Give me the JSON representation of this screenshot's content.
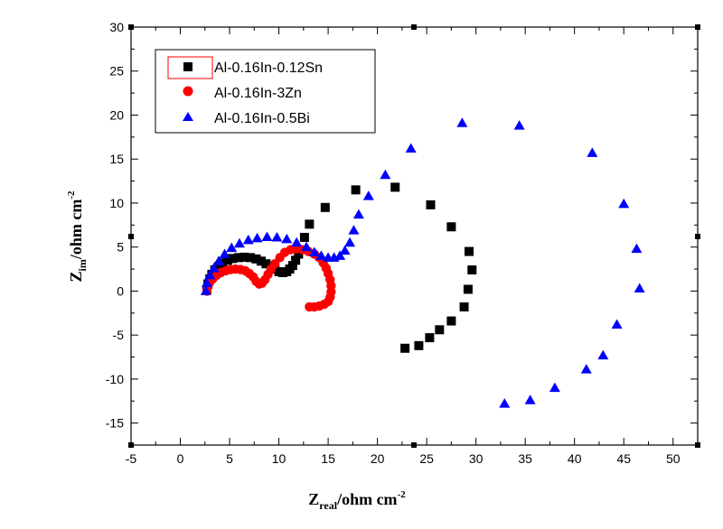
{
  "chart_data": {
    "type": "scatter",
    "xlabel": {
      "main": "Z",
      "sub": "real",
      "rest": "/ohm cm",
      "sup": "-2"
    },
    "ylabel": {
      "main": "Z",
      "sub": "im",
      "rest": "/ohm cm",
      "sup": "-2"
    },
    "xlim": [
      -5,
      52.5
    ],
    "ylim": [
      -17.5,
      30
    ],
    "xticks": [
      "-5",
      "0",
      "5",
      "10",
      "15",
      "20",
      "25",
      "30",
      "35",
      "40",
      "45",
      "50"
    ],
    "yticks": [
      "-15",
      "-10",
      "-5",
      "0",
      "5",
      "10",
      "15",
      "20",
      "25",
      "30"
    ],
    "legend_position": "top-left",
    "series": [
      {
        "name": "Al-0.16In-0.12Sn",
        "marker": "square",
        "color": "#000000",
        "points": [
          [
            2.7,
            0.2
          ],
          [
            2.8,
            0.8
          ],
          [
            3.0,
            1.4
          ],
          [
            3.2,
            1.9
          ],
          [
            3.5,
            2.4
          ],
          [
            3.9,
            2.8
          ],
          [
            4.3,
            3.2
          ],
          [
            4.8,
            3.5
          ],
          [
            5.3,
            3.7
          ],
          [
            5.9,
            3.8
          ],
          [
            6.5,
            3.85
          ],
          [
            7.1,
            3.8
          ],
          [
            7.7,
            3.65
          ],
          [
            8.2,
            3.4
          ],
          [
            8.7,
            3.1
          ],
          [
            9.2,
            2.8
          ],
          [
            9.6,
            2.5
          ],
          [
            10.0,
            2.2
          ],
          [
            10.4,
            2.1
          ],
          [
            10.8,
            2.2
          ],
          [
            11.1,
            2.5
          ],
          [
            11.4,
            2.9
          ],
          [
            11.7,
            3.5
          ],
          [
            12.0,
            4.2
          ],
          [
            12.6,
            6.1
          ],
          [
            13.1,
            7.6
          ],
          [
            14.7,
            9.5
          ],
          [
            17.8,
            11.5
          ],
          [
            21.8,
            11.8
          ],
          [
            25.4,
            9.8
          ],
          [
            27.5,
            7.3
          ],
          [
            29.3,
            4.5
          ],
          [
            29.6,
            2.4
          ],
          [
            29.2,
            0.2
          ],
          [
            28.8,
            -1.8
          ],
          [
            27.5,
            -3.4
          ],
          [
            26.3,
            -4.4
          ],
          [
            25.3,
            -5.3
          ],
          [
            24.2,
            -6.2
          ],
          [
            22.8,
            -6.5
          ]
        ]
      },
      {
        "name": "Al-0.16In-3Zn",
        "marker": "circle",
        "color": "#ff0000",
        "points": [
          [
            2.7,
            0.0
          ],
          [
            2.8,
            0.5
          ],
          [
            3.0,
            1.0
          ],
          [
            3.3,
            1.4
          ],
          [
            3.7,
            1.8
          ],
          [
            4.1,
            2.1
          ],
          [
            4.6,
            2.3
          ],
          [
            5.1,
            2.45
          ],
          [
            5.6,
            2.5
          ],
          [
            6.1,
            2.45
          ],
          [
            6.6,
            2.3
          ],
          [
            7.0,
            2.0
          ],
          [
            7.4,
            1.6
          ],
          [
            7.7,
            1.1
          ],
          [
            8.0,
            0.8
          ],
          [
            8.3,
            0.9
          ],
          [
            8.6,
            1.3
          ],
          [
            8.9,
            1.9
          ],
          [
            9.2,
            2.5
          ],
          [
            9.6,
            3.1
          ],
          [
            10.1,
            3.8
          ],
          [
            10.6,
            4.4
          ],
          [
            11.2,
            4.7
          ],
          [
            11.8,
            4.8
          ],
          [
            12.4,
            4.7
          ],
          [
            13.0,
            4.5
          ],
          [
            13.6,
            4.2
          ],
          [
            14.1,
            3.8
          ],
          [
            14.5,
            3.2
          ],
          [
            14.8,
            2.6
          ],
          [
            15.0,
            2.0
          ],
          [
            15.2,
            1.3
          ],
          [
            15.3,
            0.6
          ],
          [
            15.3,
            -0.1
          ],
          [
            15.2,
            -0.7
          ],
          [
            15.0,
            -1.2
          ],
          [
            14.6,
            -1.5
          ],
          [
            14.1,
            -1.7
          ],
          [
            13.6,
            -1.8
          ],
          [
            13.1,
            -1.8
          ]
        ]
      },
      {
        "name": "Al-0.16In-0.5Bi",
        "marker": "triangle",
        "color": "#0000ff",
        "points": [
          [
            2.6,
            0.0
          ],
          [
            2.7,
            0.9
          ],
          [
            3.0,
            1.8
          ],
          [
            3.4,
            2.6
          ],
          [
            3.9,
            3.4
          ],
          [
            4.5,
            4.2
          ],
          [
            5.2,
            4.9
          ],
          [
            6.0,
            5.4
          ],
          [
            6.9,
            5.8
          ],
          [
            7.8,
            6.0
          ],
          [
            8.8,
            6.15
          ],
          [
            9.8,
            6.1
          ],
          [
            10.8,
            5.9
          ],
          [
            11.8,
            5.5
          ],
          [
            12.8,
            5.0
          ],
          [
            13.6,
            4.4
          ],
          [
            14.3,
            4.0
          ],
          [
            15.0,
            3.8
          ],
          [
            15.6,
            3.8
          ],
          [
            16.2,
            4.0
          ],
          [
            16.7,
            4.6
          ],
          [
            17.2,
            5.5
          ],
          [
            17.6,
            6.9
          ],
          [
            18.1,
            8.7
          ],
          [
            19.1,
            10.8
          ],
          [
            20.8,
            13.2
          ],
          [
            23.4,
            16.2
          ],
          [
            28.6,
            19.1
          ],
          [
            34.4,
            18.8
          ],
          [
            41.8,
            15.7
          ],
          [
            45.0,
            9.9
          ],
          [
            46.3,
            4.8
          ],
          [
            46.6,
            0.3
          ],
          [
            44.3,
            -3.8
          ],
          [
            42.9,
            -7.3
          ],
          [
            41.2,
            -8.9
          ],
          [
            38.0,
            -11.0
          ],
          [
            35.5,
            -12.4
          ],
          [
            32.9,
            -12.8
          ]
        ]
      }
    ]
  }
}
